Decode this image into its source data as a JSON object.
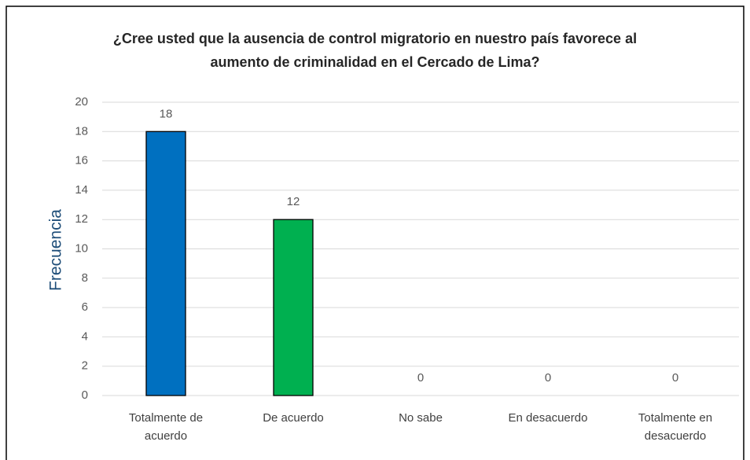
{
  "chart_data": {
    "type": "bar",
    "title": "¿Cree usted que la ausencia  de control migratorio en nuestro país favorece al aumento de criminalidad  en el Cercado de Lima?",
    "y_label": "Frecuencia",
    "categories": [
      "Totalmente de acuerdo",
      "De acuerdo",
      "No sabe",
      "En desacuerdo",
      "Totalmente en desacuerdo"
    ],
    "values": [
      18,
      12,
      0,
      0,
      0
    ],
    "colors": [
      "#0070c0",
      "#00b050",
      null,
      null,
      null
    ],
    "ylim": [
      0,
      20
    ],
    "yticks": [
      0,
      2,
      4,
      6,
      8,
      10,
      12,
      14,
      16,
      18,
      20
    ],
    "grid": true
  }
}
